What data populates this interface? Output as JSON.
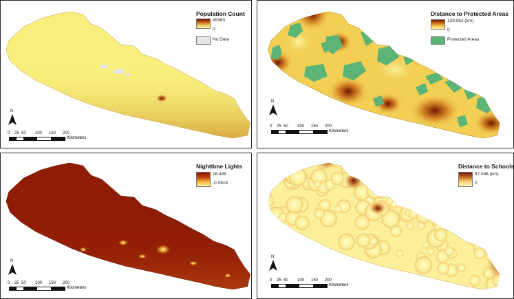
{
  "panels": [
    {
      "id": "population",
      "title": "Population Count",
      "legend": {
        "max": "45363",
        "min": "0",
        "nodata_label": "No Data"
      },
      "ramp": [
        "#fdfaa8",
        "#f0c860",
        "#c86418",
        "#6a0c00"
      ],
      "fill": "#f8ef7c"
    },
    {
      "id": "protected",
      "title": "Distance to Protected Areas",
      "legend": {
        "max": "129.062 (km)",
        "min": "0",
        "class_label": "Protected Areas"
      },
      "ramp": [
        "#fdf3a0",
        "#f2c04a",
        "#c86a16",
        "#6e1400"
      ],
      "class_color": "#5cb577",
      "fill": "#f3cf54"
    },
    {
      "id": "nighttime",
      "title": "Nighttime Lights",
      "legend": {
        "max": "16.445",
        "min": "-0.0919"
      },
      "ramp": [
        "#fef7a2",
        "#f2b33c",
        "#b8400a",
        "#8a1400"
      ],
      "fill": "#8f1c04"
    },
    {
      "id": "schools",
      "title": "Distance to Schools",
      "legend": {
        "max": "87.046 (km)",
        "min": "0"
      },
      "ramp": [
        "#fefab6",
        "#f5d07a",
        "#c46a20",
        "#6a1208"
      ],
      "fill": "#fdf09a"
    }
  ],
  "north_arrow": {
    "letter": "N"
  },
  "scale_bar": {
    "ticks": [
      "0",
      "25",
      "50",
      "100",
      "150",
      "200"
    ],
    "unit": "Kilometers"
  },
  "colors": {
    "nodata": "#e6e6e6",
    "border": "#2b2b2b"
  }
}
